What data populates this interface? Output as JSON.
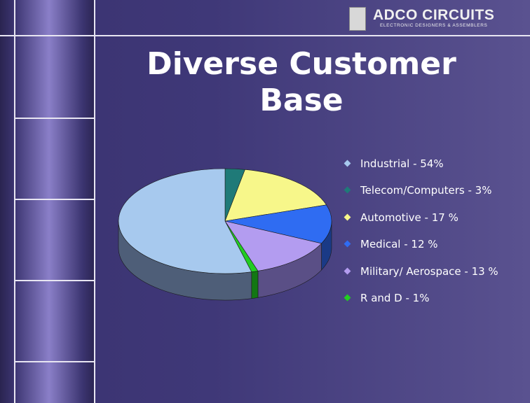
{
  "header": {
    "logo_title": "ADCO CIRCUITS",
    "logo_subtitle": "ELECTRONIC DESIGNERS & ASSEMBLERS"
  },
  "slide": {
    "title_line1": "Diverse Customer",
    "title_line2": "Base"
  },
  "colors": {
    "background": "#3f3878",
    "accent_line": "#e8e6f2",
    "text": "#ffffff"
  },
  "chart_data": {
    "type": "pie",
    "three_d": true,
    "legend_position": "right",
    "slices": [
      {
        "label": "Industrial - 54%",
        "value": 54,
        "color": "#a7c9ee",
        "side": "#4e5e78"
      },
      {
        "label": "Telecom/Computers - 3%",
        "value": 3,
        "color": "#1f7a78",
        "side": "#0f4240"
      },
      {
        "label": "Automotive - 17 %",
        "value": 17,
        "color": "#f7f78a",
        "side": "#8a8a40"
      },
      {
        "label": "Medical - 12 %",
        "value": 12,
        "color": "#2f6cf2",
        "side": "#1a3a86"
      },
      {
        "label": "Military/ Aerospace - 13 %",
        "value": 13,
        "color": "#b39cf0",
        "side": "#5a4f86"
      },
      {
        "label": "R and D - 1%",
        "value": 1,
        "color": "#22cc22",
        "side": "#137713"
      }
    ]
  }
}
